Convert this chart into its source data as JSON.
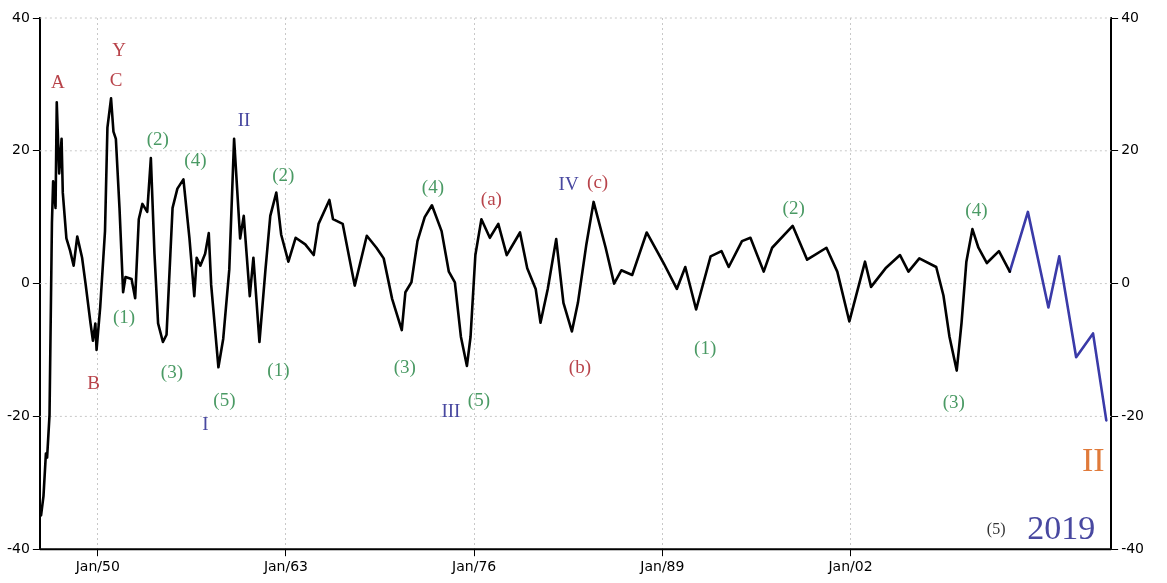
{
  "chart_data": {
    "type": "line",
    "xlim": [
      "1946-01",
      "2020-01"
    ],
    "ylim": [
      -40,
      40
    ],
    "y2lim": [
      -40,
      40
    ],
    "xticks": [
      {
        "value": "1950-01",
        "label": "Jan/50"
      },
      {
        "value": "1963-01",
        "label": "Jan/63"
      },
      {
        "value": "1976-01",
        "label": "Jan/76"
      },
      {
        "value": "1989-01",
        "label": "Jan/89"
      },
      {
        "value": "2002-01",
        "label": "Jan/02"
      }
    ],
    "yticks": [
      -40,
      -20,
      0,
      20,
      40
    ],
    "y2ticks": [
      -40,
      -20,
      0,
      20,
      40
    ],
    "grid": true,
    "legend": false,
    "marker": "none",
    "line_style": "solid",
    "series": [
      {
        "color": "#000000",
        "x": [
          "1946-02",
          "1946-04",
          "1946-06",
          "1946-07",
          "1946-09",
          "1946-11",
          "1946-12",
          "1947-02",
          "1947-03",
          "1947-05",
          "1947-07",
          "1947-08",
          "1947-11",
          "1948-02",
          "1948-05",
          "1948-08",
          "1948-12",
          "1949-03",
          "1949-07",
          "1949-09",
          "1949-11",
          "1949-12",
          "1950-03",
          "1950-07",
          "1950-09",
          "1950-12",
          "1951-02",
          "1951-04",
          "1951-07",
          "1951-10",
          "1951-12",
          "1952-05",
          "1952-08",
          "1952-11",
          "1953-02",
          "1953-06",
          "1953-09",
          "1953-12",
          "1954-03",
          "1954-07",
          "1954-10",
          "1955-03",
          "1955-07",
          "1955-12",
          "1956-05",
          "1956-09",
          "1956-11",
          "1957-02",
          "1957-06",
          "1957-09",
          "1957-11",
          "1958-05",
          "1958-09",
          "1959-02",
          "1959-06",
          "1959-11",
          "1960-02",
          "1960-07",
          "1960-10",
          "1961-03",
          "1961-08",
          "1961-12",
          "1962-05",
          "1962-09",
          "1963-03",
          "1963-09",
          "1964-05",
          "1964-12",
          "1965-04",
          "1966-01",
          "1966-04",
          "1966-12",
          "1967-10",
          "1968-08",
          "1969-04",
          "1969-10",
          "1970-05",
          "1971-01",
          "1971-04",
          "1971-09",
          "1972-02",
          "1972-08",
          "1973-02",
          "1973-10",
          "1974-04",
          "1974-09",
          "1975-02",
          "1975-07",
          "1975-10",
          "1976-02",
          "1976-07",
          "1977-02",
          "1977-09",
          "1978-04",
          "1979-03",
          "1979-09",
          "1980-04",
          "1980-08",
          "1981-02",
          "1981-09",
          "1982-03",
          "1982-10",
          "1983-03",
          "1983-10",
          "1984-04",
          "1985-02",
          "1985-09",
          "1986-03",
          "1986-12",
          "1987-12",
          "1989-02",
          "1990-01",
          "1990-08",
          "1991-05",
          "1992-05",
          "1993-02",
          "1993-08",
          "1994-07",
          "1995-02",
          "1996-01",
          "1996-08",
          "1998-01",
          "1999-01",
          "2000-05",
          "2001-02",
          "2001-12",
          "2003-01",
          "2003-06",
          "2004-06",
          "2005-06",
          "2006-01",
          "2006-10",
          "2007-12",
          "2008-06",
          "2008-11",
          "2009-05",
          "2009-09",
          "2010-01",
          "2010-06",
          "2010-11",
          "2011-06",
          "2012-04",
          "2013-01"
        ],
        "values": [
          -34.9,
          -32,
          -25.6,
          -26.2,
          -19.8,
          9.1,
          15.4,
          11.4,
          27.3,
          16.6,
          21.8,
          13.7,
          6.8,
          5,
          2.7,
          7.1,
          3.9,
          -0.2,
          -6,
          -8.6,
          -6,
          -10,
          -3.6,
          7.9,
          23.5,
          27.9,
          22.9,
          21.8,
          11.4,
          -1.3,
          1,
          0.7,
          -2.2,
          9.7,
          12,
          10.8,
          18.9,
          4.5,
          -6,
          -8.8,
          -7.7,
          11.4,
          14.3,
          15.7,
          6.8,
          -1.9,
          3.9,
          2.7,
          4.5,
          7.6,
          -0.2,
          -12.6,
          -8.3,
          2.1,
          21.8,
          6.8,
          10.2,
          -1.9,
          3.9,
          -8.8,
          2.1,
          10.2,
          13.7,
          7.4,
          3.3,
          6.9,
          5.9,
          4.3,
          9,
          12.6,
          9.7,
          9,
          -0.3,
          7.2,
          5.4,
          3.8,
          -2.3,
          -7,
          -1.3,
          0.2,
          6.4,
          10,
          11.8,
          7.9,
          1.8,
          0.2,
          -8,
          -12.4,
          -8,
          4.3,
          9.7,
          6.9,
          9,
          4.3,
          7.7,
          2.3,
          -0.8,
          -5.9,
          -0.8,
          6.7,
          -2.9,
          -7.2,
          -2.9,
          5.9,
          12.3,
          5.4,
          0,
          2,
          1.3,
          7.7,
          3.1,
          -0.8,
          2.5,
          -3.9,
          4.1,
          4.9,
          2.5,
          6.4,
          6.9,
          1.8,
          5.4,
          8.7,
          3.6,
          5.4,
          1.8,
          -5.7,
          3.3,
          -0.5,
          2.3,
          4.3,
          1.8,
          3.8,
          2.5,
          -1.8,
          -8,
          -13.1,
          -5.9,
          3.3,
          8.2,
          5.4,
          3.1,
          4.9,
          1.8
        ]
      },
      {
        "color": "#3a3aa8",
        "x": [
          "2013-01",
          "2014-04",
          "2015-09",
          "2016-06",
          "2017-08",
          "2018-10",
          "2019-09"
        ],
        "values": [
          1.8,
          10.8,
          -3.6,
          4.1,
          -11.1,
          -7.5,
          -20.6
        ]
      }
    ],
    "annotations": [
      {
        "text": "A",
        "x": "1947-03",
        "y": 27.3
      },
      {
        "text": "C",
        "x": "1950-12",
        "y": 27.9
      },
      {
        "text": "Y",
        "x": "1950-12",
        "y": 27.9
      },
      {
        "text": "B",
        "x": "1949-12",
        "y": -10
      },
      {
        "text": "(1)",
        "x": "1951-10",
        "y": -1.3
      },
      {
        "text": "(2)",
        "x": "1953-09",
        "y": 18.9
      },
      {
        "text": "(3)",
        "x": "1954-07",
        "y": -8.8
      },
      {
        "text": "(4)",
        "x": "1955-12",
        "y": 15.7
      },
      {
        "text": "(5)",
        "x": "1958-05",
        "y": -12.6
      },
      {
        "text": "I",
        "x": "1958-05",
        "y": -12.6
      },
      {
        "text": "II",
        "x": "1959-06",
        "y": 21.8
      },
      {
        "text": "(1)",
        "x": "1961-03",
        "y": -8.8
      },
      {
        "text": "(2)",
        "x": "1962-05",
        "y": 13.7
      },
      {
        "text": "(3)",
        "x": "1971-01",
        "y": -7
      },
      {
        "text": "(4)",
        "x": "1973-02",
        "y": 11.8
      },
      {
        "text": "(5)",
        "x": "1975-07",
        "y": -12.4
      },
      {
        "text": "III",
        "x": "1975-07",
        "y": -12.4
      },
      {
        "text": "(a)",
        "x": "1976-07",
        "y": 9.7
      },
      {
        "text": "(c)",
        "x": "1984-04",
        "y": 12.3
      },
      {
        "text": "IV",
        "x": "1984-04",
        "y": 12.3
      },
      {
        "text": "(b)",
        "x": "1982-10",
        "y": -7.2
      },
      {
        "text": "(1)",
        "x": "1991-05",
        "y": -3.9
      },
      {
        "text": "(2)",
        "x": "1998-01",
        "y": 8.7
      },
      {
        "text": "(3)",
        "x": "2009-05",
        "y": -13.1
      },
      {
        "text": "(4)",
        "x": "2010-06",
        "y": 8.2
      },
      {
        "text": "II",
        "x": "2019-09",
        "y": -20.6
      },
      "(5)",
      "2019"
    ]
  }
}
